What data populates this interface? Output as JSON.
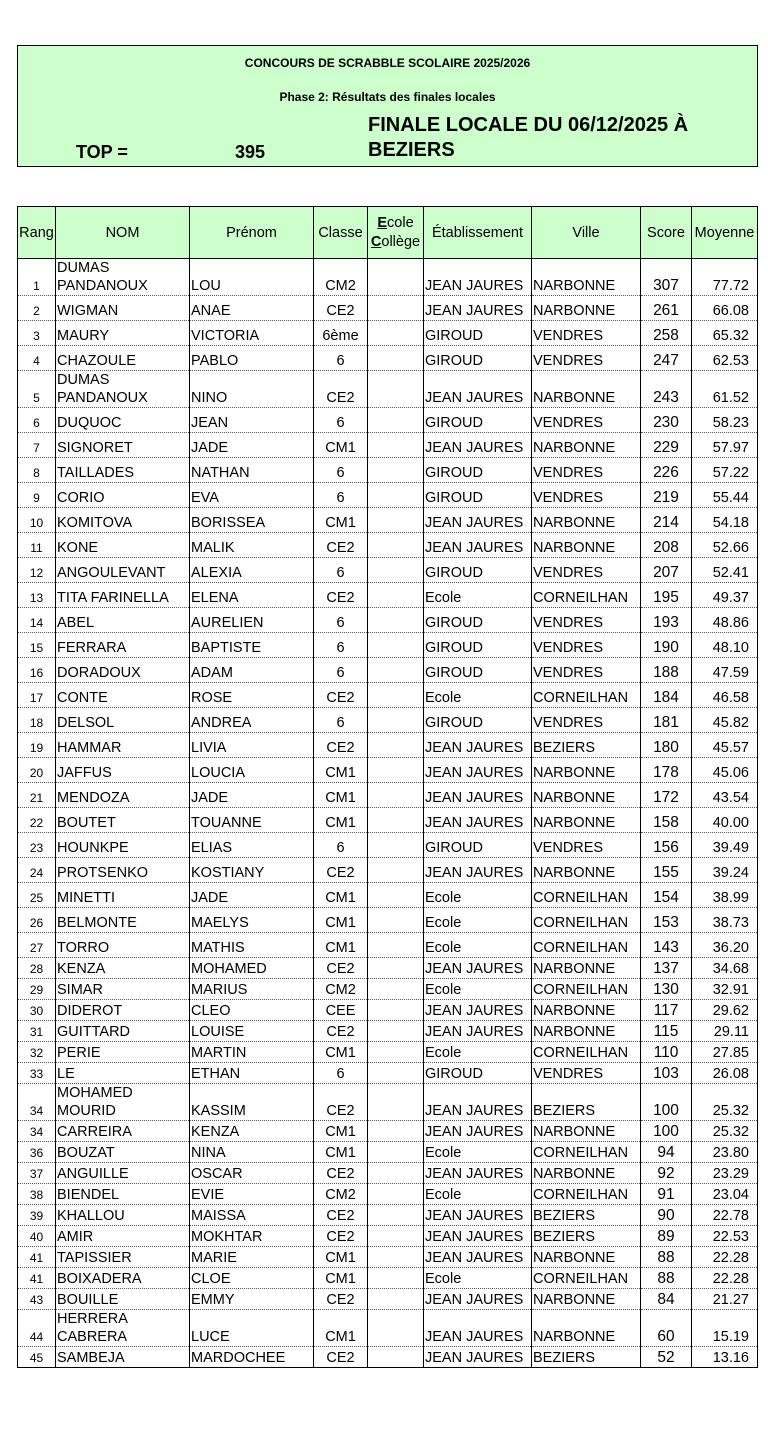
{
  "header": {
    "title": "CONCOURS DE SCRABBLE SCOLAIRE 2025/2026",
    "subtitle": "Phase 2: Résultats des finales locales",
    "top_label": "TOP =",
    "top_value": "395",
    "finale": "FINALE LOCALE DU 06/12/2025 À BEZIERS"
  },
  "table": {
    "columns": [
      "Rang",
      "NOM",
      "Prénom",
      "Classe",
      [
        "Ecole",
        "Collège"
      ],
      "Établissement",
      "Ville",
      "Score",
      "Moyenne"
    ],
    "rows": [
      [
        "1",
        "DUMAS PANDANOUX",
        "LOU",
        "CM2",
        "JEAN JAURES",
        "NARBONNE",
        "307",
        "77.72"
      ],
      [
        "2",
        "WIGMAN",
        "ANAE",
        "CE2",
        "JEAN JAURES",
        "NARBONNE",
        "261",
        "66.08"
      ],
      [
        "3",
        "MAURY",
        "VICTORIA",
        "6ème",
        "GIROUD",
        "VENDRES",
        "258",
        "65.32"
      ],
      [
        "4",
        "CHAZOULE",
        "PABLO",
        "6",
        "GIROUD",
        "VENDRES",
        "247",
        "62.53"
      ],
      [
        "5",
        "DUMAS PANDANOUX",
        "NINO",
        "CE2",
        "JEAN JAURES",
        "NARBONNE",
        "243",
        "61.52"
      ],
      [
        "6",
        "DUQUOC",
        "JEAN",
        "6",
        "GIROUD",
        "VENDRES",
        "230",
        "58.23"
      ],
      [
        "7",
        "SIGNORET",
        "JADE",
        "CM1",
        "JEAN JAURES",
        "NARBONNE",
        "229",
        "57.97"
      ],
      [
        "8",
        "TAILLADES",
        "NATHAN",
        "6",
        "GIROUD",
        "VENDRES",
        "226",
        "57.22"
      ],
      [
        "9",
        "CORIO",
        "EVA",
        "6",
        "GIROUD",
        "VENDRES",
        "219",
        "55.44"
      ],
      [
        "10",
        "KOMITOVA",
        "BORISSEA",
        "CM1",
        "JEAN JAURES",
        "NARBONNE",
        "214",
        "54.18"
      ],
      [
        "11",
        "KONE",
        "MALIK",
        "CE2",
        "JEAN JAURES",
        "NARBONNE",
        "208",
        "52.66"
      ],
      [
        "12",
        "ANGOULEVANT",
        "ALEXIA",
        "6",
        "GIROUD",
        "VENDRES",
        "207",
        "52.41"
      ],
      [
        "13",
        "TITA FARINELLA",
        "ELENA",
        "CE2",
        "Ecole",
        "CORNEILHAN",
        "195",
        "49.37"
      ],
      [
        "14",
        "ABEL",
        "AURELIEN",
        "6",
        "GIROUD",
        "VENDRES",
        "193",
        "48.86"
      ],
      [
        "15",
        "FERRARA",
        "BAPTISTE",
        "6",
        "GIROUD",
        "VENDRES",
        "190",
        "48.10"
      ],
      [
        "16",
        "DORADOUX",
        "ADAM",
        "6",
        "GIROUD",
        "VENDRES",
        "188",
        "47.59"
      ],
      [
        "17",
        "CONTE",
        "ROSE",
        "CE2",
        "Ecole",
        "CORNEILHAN",
        "184",
        "46.58"
      ],
      [
        "18",
        "DELSOL",
        "ANDREA",
        "6",
        "GIROUD",
        "VENDRES",
        "181",
        "45.82"
      ],
      [
        "19",
        "HAMMAR",
        "LIVIA",
        "CE2",
        "JEAN JAURES",
        "BEZIERS",
        "180",
        "45.57"
      ],
      [
        "20",
        "JAFFUS",
        "LOUCIA",
        "CM1",
        "JEAN JAURES",
        "NARBONNE",
        "178",
        "45.06"
      ],
      [
        "21",
        "MENDOZA",
        "JADE",
        "CM1",
        "JEAN JAURES",
        "NARBONNE",
        "172",
        "43.54"
      ],
      [
        "22",
        "BOUTET",
        "TOUANNE",
        "CM1",
        "JEAN JAURES",
        "NARBONNE",
        "158",
        "40.00"
      ],
      [
        "23",
        "HOUNKPE",
        "ELIAS",
        "6",
        "GIROUD",
        "VENDRES",
        "156",
        "39.49"
      ],
      [
        "24",
        "PROTSENKO",
        "KOSTIANY",
        "CE2",
        "JEAN JAURES",
        "NARBONNE",
        "155",
        "39.24"
      ],
      [
        "25",
        "MINETTI",
        "JADE",
        "CM1",
        "Ecole",
        "CORNEILHAN",
        "154",
        "38.99"
      ],
      [
        "26",
        "BELMONTE",
        "MAELYS",
        "CM1",
        "Ecole",
        "CORNEILHAN",
        "153",
        "38.73"
      ],
      [
        "27",
        "TORRO",
        "MATHIS",
        "CM1",
        "Ecole",
        "CORNEILHAN",
        "143",
        "36.20"
      ],
      [
        "28",
        "KENZA",
        "MOHAMED",
        "CE2",
        "JEAN JAURES",
        "NARBONNE",
        "137",
        "34.68"
      ],
      [
        "29",
        "SIMAR",
        "MARIUS",
        "CM2",
        "Ecole",
        "CORNEILHAN",
        "130",
        "32.91"
      ],
      [
        "30",
        "DIDEROT",
        "CLEO",
        "CEE",
        "JEAN JAURES",
        "NARBONNE",
        "117",
        "29.62"
      ],
      [
        "31",
        "GUITTARD",
        "LOUISE",
        "CE2",
        "JEAN JAURES",
        "NARBONNE",
        "115",
        "29.11"
      ],
      [
        "32",
        "PERIE",
        "MARTIN",
        "CM1",
        "Ecole",
        "CORNEILHAN",
        "110",
        "27.85"
      ],
      [
        "33",
        "LE",
        "ETHAN",
        "6",
        "GIROUD",
        "VENDRES",
        "103",
        "26.08"
      ],
      [
        "34",
        "MOHAMED MOURID",
        "KASSIM",
        "CE2",
        "JEAN JAURES",
        "BEZIERS",
        "100",
        "25.32"
      ],
      [
        "34",
        "CARREIRA",
        "KENZA",
        "CM1",
        "JEAN JAURES",
        "NARBONNE",
        "100",
        "25.32"
      ],
      [
        "36",
        "BOUZAT",
        "NINA",
        "CM1",
        "Ecole",
        "CORNEILHAN",
        "94",
        "23.80"
      ],
      [
        "37",
        "ANGUILLE",
        "OSCAR",
        "CE2",
        "JEAN JAURES",
        "NARBONNE",
        "92",
        "23.29"
      ],
      [
        "38",
        "BIENDEL",
        "EVIE",
        "CM2",
        "Ecole",
        "CORNEILHAN",
        "91",
        "23.04"
      ],
      [
        "39",
        "KHALLOU",
        "MAISSA",
        "CE2",
        "JEAN JAURES",
        "BEZIERS",
        "90",
        "22.78"
      ],
      [
        "40",
        "AMIR",
        "MOKHTAR",
        "CE2",
        "JEAN JAURES",
        "BEZIERS",
        "89",
        "22.53"
      ],
      [
        "41",
        "TAPISSIER",
        "MARIE",
        "CM1",
        "JEAN JAURES",
        "NARBONNE",
        "88",
        "22.28"
      ],
      [
        "41",
        "BOIXADERA",
        "CLOE",
        "CM1",
        "Ecole",
        "CORNEILHAN",
        "88",
        "22.28"
      ],
      [
        "43",
        "BOUILLE",
        "EMMY",
        "CE2",
        "JEAN JAURES",
        "NARBONNE",
        "84",
        "21.27"
      ],
      [
        "44",
        "HERRERA CABRERA",
        "LUCE",
        "CM1",
        "JEAN JAURES",
        "NARBONNE",
        "60",
        "15.19"
      ],
      [
        "45",
        "SAMBEJA",
        "MARDOCHEE",
        "CE2",
        "JEAN JAURES",
        "BEZIERS",
        "52",
        "13.16"
      ]
    ]
  }
}
